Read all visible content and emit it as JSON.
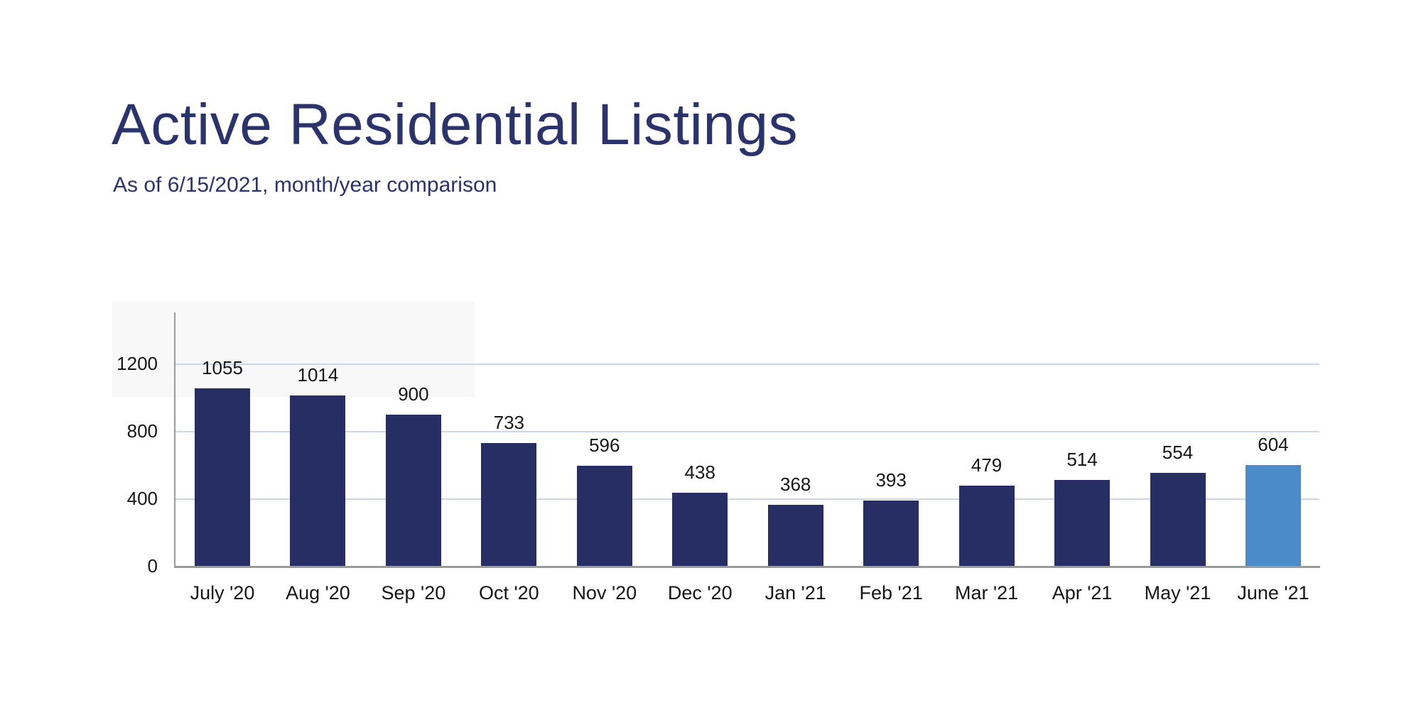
{
  "header": {
    "title": "Active Residential Listings",
    "subtitle": "As of 6/15/2021, month/year comparison"
  },
  "colors": {
    "title_navy": "#2a336b",
    "bar_navy": "#272e64",
    "bar_highlight_blue": "#4b8bc9",
    "gridline": "#ccd6ea",
    "axis_gray": "#9a9a9a",
    "label_dark": "#161616"
  },
  "chart_data": {
    "type": "bar",
    "title": "Active Residential Listings",
    "subtitle": "As of 6/15/2021, month/year comparison",
    "categories": [
      "July '20",
      "Aug '20",
      "Sep '20",
      "Oct '20",
      "Nov '20",
      "Dec '20",
      "Jan '21",
      "Feb '21",
      "Mar '21",
      "Apr '21",
      "May '21",
      "June '21"
    ],
    "values": [
      1055,
      1014,
      900,
      733,
      596,
      438,
      368,
      393,
      479,
      514,
      554,
      604
    ],
    "highlight_index": 11,
    "highlight_category": "June '21",
    "yticks": [
      0,
      400,
      800,
      1200
    ],
    "ylim": [
      0,
      1500
    ],
    "grid": true,
    "legend": false,
    "xlabel": "",
    "ylabel": "",
    "value_labels": true
  }
}
